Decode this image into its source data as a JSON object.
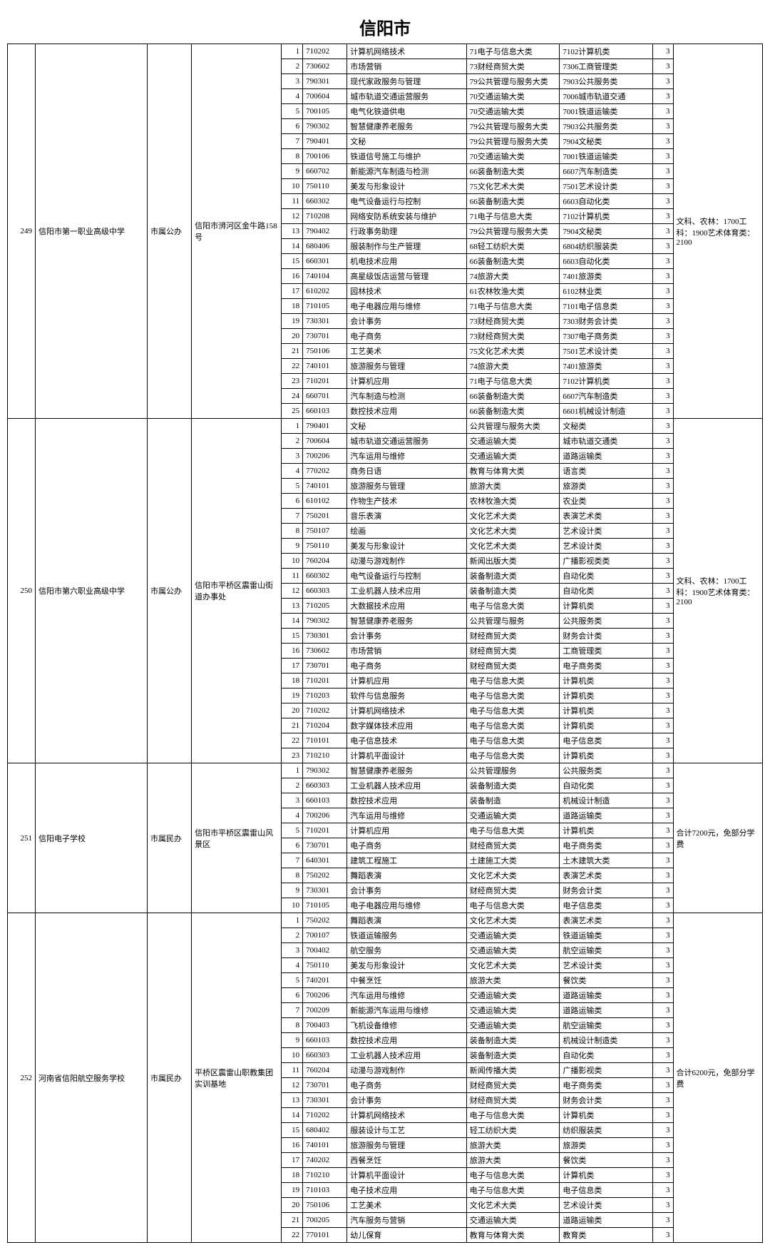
{
  "title": "信阳市",
  "schools": [
    {
      "num": "249",
      "name": "信阳市第一职业高级中学",
      "type": "市属公办",
      "address": "信阳市浉河区金牛路158号",
      "notes": "文科、农林：1700工科：1900艺术体育类：2100",
      "rows": [
        {
          "seq": "1",
          "code": "710202",
          "major": "计算机网络技术",
          "cat1": "71电子与信息大类",
          "cat2": "7102计算机类",
          "dur": "3"
        },
        {
          "seq": "2",
          "code": "730602",
          "major": "市场营销",
          "cat1": "73财经商贸大类",
          "cat2": "7306工商管理类",
          "dur": "3"
        },
        {
          "seq": "3",
          "code": "790301",
          "major": "现代家政服务与管理",
          "cat1": "79公共管理与服务大类",
          "cat2": "7903公共服务类",
          "dur": "3"
        },
        {
          "seq": "4",
          "code": "700604",
          "major": "城市轨道交通运营服务",
          "cat1": "70交通运输大类",
          "cat2": "7006城市轨道交通",
          "dur": "3"
        },
        {
          "seq": "5",
          "code": "700105",
          "major": "电气化铁道供电",
          "cat1": "70交通运输大类",
          "cat2": "7001铁道运输类",
          "dur": "3"
        },
        {
          "seq": "6",
          "code": "790302",
          "major": "智慧健康养老服务",
          "cat1": "79公共管理与服务大类",
          "cat2": "7903公共服务类",
          "dur": "3"
        },
        {
          "seq": "7",
          "code": "790401",
          "major": "文秘",
          "cat1": "79公共管理与服务大类",
          "cat2": "7904文秘类",
          "dur": "3"
        },
        {
          "seq": "8",
          "code": "700106",
          "major": "铁道信号施工与维护",
          "cat1": "70交通运输大类",
          "cat2": "7001铁道运输类",
          "dur": "3"
        },
        {
          "seq": "9",
          "code": "660702",
          "major": "新能源汽车制造与检测",
          "cat1": "66装备制造大类",
          "cat2": "6607汽车制造类",
          "dur": "3"
        },
        {
          "seq": "10",
          "code": "750110",
          "major": "美发与形象设计",
          "cat1": "75文化艺术大类",
          "cat2": "7501艺术设计类",
          "dur": "3"
        },
        {
          "seq": "11",
          "code": "660302",
          "major": "电气设备运行与控制",
          "cat1": "66装备制造大类",
          "cat2": "6603自动化类",
          "dur": "3"
        },
        {
          "seq": "12",
          "code": "710208",
          "major": "网络安防系统安装与维护",
          "cat1": "71电子与信息大类",
          "cat2": "7102计算机类",
          "dur": "3"
        },
        {
          "seq": "13",
          "code": "790402",
          "major": "行政事务助理",
          "cat1": "79公共管理与服务大类",
          "cat2": "7904文秘类",
          "dur": "3"
        },
        {
          "seq": "14",
          "code": "680406",
          "major": "服装制作与生产管理",
          "cat1": "68轻工纺织大类",
          "cat2": "6804纺织服装类",
          "dur": "3"
        },
        {
          "seq": "15",
          "code": "660301",
          "major": "机电技术应用",
          "cat1": "66装备制造大类",
          "cat2": "6603自动化类",
          "dur": "3"
        },
        {
          "seq": "16",
          "code": "740104",
          "major": "高星级饭店运营与管理",
          "cat1": "74旅游大类",
          "cat2": "7401旅游类",
          "dur": "3"
        },
        {
          "seq": "17",
          "code": "610202",
          "major": "园林技术",
          "cat1": "61农林牧渔大类",
          "cat2": "6102林业类",
          "dur": "3"
        },
        {
          "seq": "18",
          "code": "710105",
          "major": "电子电器应用与维修",
          "cat1": "71电子与信息大类",
          "cat2": "7101电子信息类",
          "dur": "3"
        },
        {
          "seq": "19",
          "code": "730301",
          "major": "会计事务",
          "cat1": "73财经商贸大类",
          "cat2": "7303财务会计类",
          "dur": "3"
        },
        {
          "seq": "20",
          "code": "730701",
          "major": "电子商务",
          "cat1": "73财经商贸大类",
          "cat2": "7307电子商务类",
          "dur": "3"
        },
        {
          "seq": "21",
          "code": "750106",
          "major": "工艺美术",
          "cat1": "75文化艺术大类",
          "cat2": "7501艺术设计类",
          "dur": "3"
        },
        {
          "seq": "22",
          "code": "740101",
          "major": "旅游服务与管理",
          "cat1": "74旅游大类",
          "cat2": "7401旅游类",
          "dur": "3"
        },
        {
          "seq": "23",
          "code": "710201",
          "major": "计算机应用",
          "cat1": "71电子与信息大类",
          "cat2": "7102计算机类",
          "dur": "3"
        },
        {
          "seq": "24",
          "code": "660701",
          "major": "汽车制造与检测",
          "cat1": "66装备制造大类",
          "cat2": "6607汽车制造类",
          "dur": "3"
        },
        {
          "seq": "25",
          "code": "660103",
          "major": "数控技术应用",
          "cat1": "66装备制造大类",
          "cat2": "6601机械设计制造",
          "dur": "3"
        }
      ]
    },
    {
      "num": "250",
      "name": "信阳市第六职业高级中学",
      "type": "市属公办",
      "address": "信阳市平桥区震雷山街道办事处",
      "notes": "文科、农林：1700工科：1900艺术体育类：2100",
      "rows": [
        {
          "seq": "1",
          "code": "790401",
          "major": "文秘",
          "cat1": "公共管理与服务大类",
          "cat2": "文秘类",
          "dur": "3"
        },
        {
          "seq": "2",
          "code": "700604",
          "major": "城市轨道交通运营服务",
          "cat1": "交通运输大类",
          "cat2": "城市轨道交通类",
          "dur": "3"
        },
        {
          "seq": "3",
          "code": "700206",
          "major": "汽车运用与维修",
          "cat1": "交通运输大类",
          "cat2": "道路运输类",
          "dur": "3"
        },
        {
          "seq": "4",
          "code": "770202",
          "major": "商务日语",
          "cat1": "教育与体育大类",
          "cat2": "语言类",
          "dur": "3"
        },
        {
          "seq": "5",
          "code": "740101",
          "major": "旅游服务与管理",
          "cat1": "旅游大类",
          "cat2": "旅游类",
          "dur": "3"
        },
        {
          "seq": "6",
          "code": "610102",
          "major": "作物生产技术",
          "cat1": "农林牧渔大类",
          "cat2": "农业类",
          "dur": "3"
        },
        {
          "seq": "7",
          "code": "750201",
          "major": "音乐表演",
          "cat1": "文化艺术大类",
          "cat2": "表演艺术类",
          "dur": "3"
        },
        {
          "seq": "8",
          "code": "750107",
          "major": "绘画",
          "cat1": "文化艺术大类",
          "cat2": "艺术设计类",
          "dur": "3"
        },
        {
          "seq": "9",
          "code": "750110",
          "major": "美发与形象设计",
          "cat1": "文化艺术大类",
          "cat2": "艺术设计类",
          "dur": "3"
        },
        {
          "seq": "10",
          "code": "760204",
          "major": "动漫与游戏制作",
          "cat1": "新闻出版大类",
          "cat2": "广播影视类类",
          "dur": "3"
        },
        {
          "seq": "11",
          "code": "660302",
          "major": "电气设备运行与控制",
          "cat1": "装备制造大类",
          "cat2": "自动化类",
          "dur": "3"
        },
        {
          "seq": "12",
          "code": "660303",
          "major": "工业机器人技术应用",
          "cat1": "装备制造大类",
          "cat2": "自动化类",
          "dur": "3"
        },
        {
          "seq": "13",
          "code": "710205",
          "major": "大数据技术应用",
          "cat1": "电子与信息大类",
          "cat2": "计算机类",
          "dur": "3"
        },
        {
          "seq": "14",
          "code": "790302",
          "major": "智慧健康养老服务",
          "cat1": "公共管理与服务",
          "cat2": "公共服务类",
          "dur": "3"
        },
        {
          "seq": "15",
          "code": "730301",
          "major": "会计事务",
          "cat1": "财经商贸大类",
          "cat2": "财务会计类",
          "dur": "3"
        },
        {
          "seq": "16",
          "code": "730602",
          "major": "市场营销",
          "cat1": "财经商贸大类",
          "cat2": "工商管理类",
          "dur": "3"
        },
        {
          "seq": "17",
          "code": "730701",
          "major": "电子商务",
          "cat1": "财经商贸大类",
          "cat2": "电子商务类",
          "dur": "3"
        },
        {
          "seq": "18",
          "code": "710201",
          "major": "计算机应用",
          "cat1": "电子与信息大类",
          "cat2": "计算机类",
          "dur": "3"
        },
        {
          "seq": "19",
          "code": "710203",
          "major": "软件与信息服务",
          "cat1": "电子与信息大类",
          "cat2": "计算机类",
          "dur": "3"
        },
        {
          "seq": "20",
          "code": "710202",
          "major": "计算机网络技术",
          "cat1": "电子与信息大类",
          "cat2": "计算机类",
          "dur": "3"
        },
        {
          "seq": "21",
          "code": "710204",
          "major": "数字媒体技术应用",
          "cat1": "电子与信息大类",
          "cat2": "计算机类",
          "dur": "3"
        },
        {
          "seq": "22",
          "code": "710101",
          "major": "电子信息技术",
          "cat1": "电子与信息大类",
          "cat2": "电子信息类",
          "dur": "3"
        },
        {
          "seq": "23",
          "code": "710210",
          "major": "计算机平面设计",
          "cat1": "电子与信息大类",
          "cat2": "计算机类",
          "dur": "3"
        }
      ]
    },
    {
      "num": "251",
      "name": "信阳电子学校",
      "type": "市属民办",
      "address": "信阳市平桥区震雷山风景区",
      "notes": "合计7200元，免部分学费",
      "rows": [
        {
          "seq": "1",
          "code": "790302",
          "major": "智慧健康养老服务",
          "cat1": "公共管理服务",
          "cat2": "公共服务类",
          "dur": "3"
        },
        {
          "seq": "2",
          "code": "660303",
          "major": "工业机器人技术应用",
          "cat1": "装备制造大类",
          "cat2": "自动化类",
          "dur": "3"
        },
        {
          "seq": "3",
          "code": "660103",
          "major": "数控技术应用",
          "cat1": "装备制造",
          "cat2": "机械设计制造",
          "dur": "3"
        },
        {
          "seq": "4",
          "code": "700206",
          "major": "汽车运用与维修",
          "cat1": "交通运输大类",
          "cat2": "道路运输类",
          "dur": "3"
        },
        {
          "seq": "5",
          "code": "710201",
          "major": "计算机应用",
          "cat1": "电子与信息大类",
          "cat2": "计算机类",
          "dur": "3"
        },
        {
          "seq": "6",
          "code": "730701",
          "major": "电子商务",
          "cat1": "财经商贸大类",
          "cat2": "电子商务类",
          "dur": "3"
        },
        {
          "seq": "7",
          "code": "640301",
          "major": "建筑工程施工",
          "cat1": "土建施工大类",
          "cat2": "土木建筑大类",
          "dur": "3"
        },
        {
          "seq": "8",
          "code": "750202",
          "major": "舞蹈表演",
          "cat1": "文化艺术大类",
          "cat2": "表演艺术类",
          "dur": "3"
        },
        {
          "seq": "9",
          "code": "730301",
          "major": "会计事务",
          "cat1": "财经商贸大类",
          "cat2": "财务会计类",
          "dur": "3"
        },
        {
          "seq": "10",
          "code": "710105",
          "major": "电子电器应用与维修",
          "cat1": "电子与信息大类",
          "cat2": "电子信息类",
          "dur": "3"
        }
      ]
    },
    {
      "num": "252",
      "name": "河南省信阳航空服务学校",
      "type": "市属民办",
      "address": "平桥区震雷山职教集团实训基地",
      "notes": "合计6200元，免部分学费",
      "rows": [
        {
          "seq": "1",
          "code": "750202",
          "major": "舞蹈表演",
          "cat1": "文化艺术大类",
          "cat2": "表演艺术类",
          "dur": "3"
        },
        {
          "seq": "2",
          "code": "700107",
          "major": "铁道运输服务",
          "cat1": "交通运输大类",
          "cat2": "铁道运输类",
          "dur": "3"
        },
        {
          "seq": "3",
          "code": "700402",
          "major": "航空服务",
          "cat1": "交通运输大类",
          "cat2": "航空运输类",
          "dur": "3"
        },
        {
          "seq": "4",
          "code": "750110",
          "major": "美发与形象设计",
          "cat1": "文化艺术大类",
          "cat2": "艺术设计类",
          "dur": "3"
        },
        {
          "seq": "5",
          "code": "740201",
          "major": "中餐烹饪",
          "cat1": "旅游大类",
          "cat2": "餐饮类",
          "dur": "3"
        },
        {
          "seq": "6",
          "code": "700206",
          "major": "汽车运用与维修",
          "cat1": "交通运输大类",
          "cat2": "道路运输类",
          "dur": "3"
        },
        {
          "seq": "7",
          "code": "700209",
          "major": "新能源汽车运用与维修",
          "cat1": "交通运输大类",
          "cat2": "道路运输类",
          "dur": "3"
        },
        {
          "seq": "8",
          "code": "700403",
          "major": "飞机设备维修",
          "cat1": "交通运输大类",
          "cat2": "航空运输类",
          "dur": "3"
        },
        {
          "seq": "9",
          "code": "660103",
          "major": "数控技术应用",
          "cat1": "装备制造大类",
          "cat2": "机械设计制造类",
          "dur": "3"
        },
        {
          "seq": "10",
          "code": "660303",
          "major": "工业机器人技术应用",
          "cat1": "装备制造大类",
          "cat2": "自动化类",
          "dur": "3"
        },
        {
          "seq": "11",
          "code": "760204",
          "major": "动漫与游戏制作",
          "cat1": "新闻传播大类",
          "cat2": "广播影视类",
          "dur": "3"
        },
        {
          "seq": "12",
          "code": "730701",
          "major": "电子商务",
          "cat1": "财经商贸大类",
          "cat2": "电子商务类",
          "dur": "3"
        },
        {
          "seq": "13",
          "code": "730301",
          "major": "会计事务",
          "cat1": "财经商贸大类",
          "cat2": "财务会计类",
          "dur": "3"
        },
        {
          "seq": "14",
          "code": "710202",
          "major": "计算机网络技术",
          "cat1": "电子与信息大类",
          "cat2": "计算机类",
          "dur": "3"
        },
        {
          "seq": "15",
          "code": "680402",
          "major": "服装设计与工艺",
          "cat1": "轻工纺织大类",
          "cat2": "纺织服装类",
          "dur": "3"
        },
        {
          "seq": "16",
          "code": "740101",
          "major": "旅游服务与管理",
          "cat1": "旅游大类",
          "cat2": "旅游类",
          "dur": "3"
        },
        {
          "seq": "17",
          "code": "740202",
          "major": "西餐烹饪",
          "cat1": "旅游大类",
          "cat2": "餐饮类",
          "dur": "3"
        },
        {
          "seq": "18",
          "code": "710210",
          "major": "计算机平面设计",
          "cat1": "电子与信息大类",
          "cat2": "计算机类",
          "dur": "3"
        },
        {
          "seq": "19",
          "code": "710103",
          "major": "电子技术应用",
          "cat1": "电子与信息大类",
          "cat2": "电子信息类",
          "dur": "3"
        },
        {
          "seq": "20",
          "code": "750106",
          "major": "工艺美术",
          "cat1": "文化艺术大类",
          "cat2": "艺术设计类",
          "dur": "3"
        },
        {
          "seq": "21",
          "code": "700205",
          "major": "汽车服务与营销",
          "cat1": "交通运输大类",
          "cat2": "道路运输类",
          "dur": "3"
        },
        {
          "seq": "22",
          "code": "770101",
          "major": "幼儿保育",
          "cat1": "教育与体育大类",
          "cat2": "教育类",
          "dur": "3"
        }
      ]
    }
  ]
}
